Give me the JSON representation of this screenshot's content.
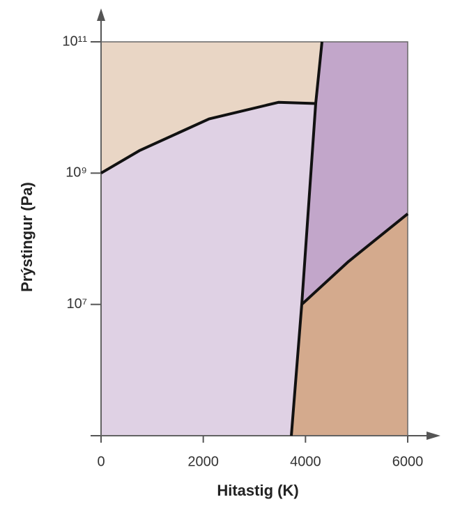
{
  "chart_data": {
    "type": "phase",
    "x_label": "Hitastig (K)",
    "y_label": "Prýstingur (Pa)",
    "xlim": [
      0,
      6000
    ],
    "xticks": [
      0,
      2000,
      4000,
      6000
    ],
    "ylim": [
      100000,
      100000000000
    ],
    "yticks": [
      {
        "value": 10000000,
        "label": "10⁷"
      },
      {
        "value": 1000000000,
        "label": "10⁹"
      },
      {
        "value": 100000000000,
        "label": "10¹¹"
      }
    ],
    "log_y": true,
    "fills": [
      "#e9d6c5",
      "#dfd1e4",
      "#c2a6ca",
      "#d4aa8d"
    ],
    "line_color": "#111111",
    "series": [
      {
        "x": [
          0,
          750,
          2114,
          3477,
          4200
        ],
        "values": [
          1000000000,
          2200000000,
          6700000000,
          12000000000,
          11500000000
        ]
      },
      {
        "x": [
          3723,
          3927,
          4200,
          4323
        ],
        "values": [
          100000,
          10000000,
          11500000000,
          100000000000
        ]
      },
      {
        "x": [
          3927,
          4841,
          6000
        ],
        "values": [
          10000000,
          45000000,
          240000000
        ]
      }
    ]
  }
}
